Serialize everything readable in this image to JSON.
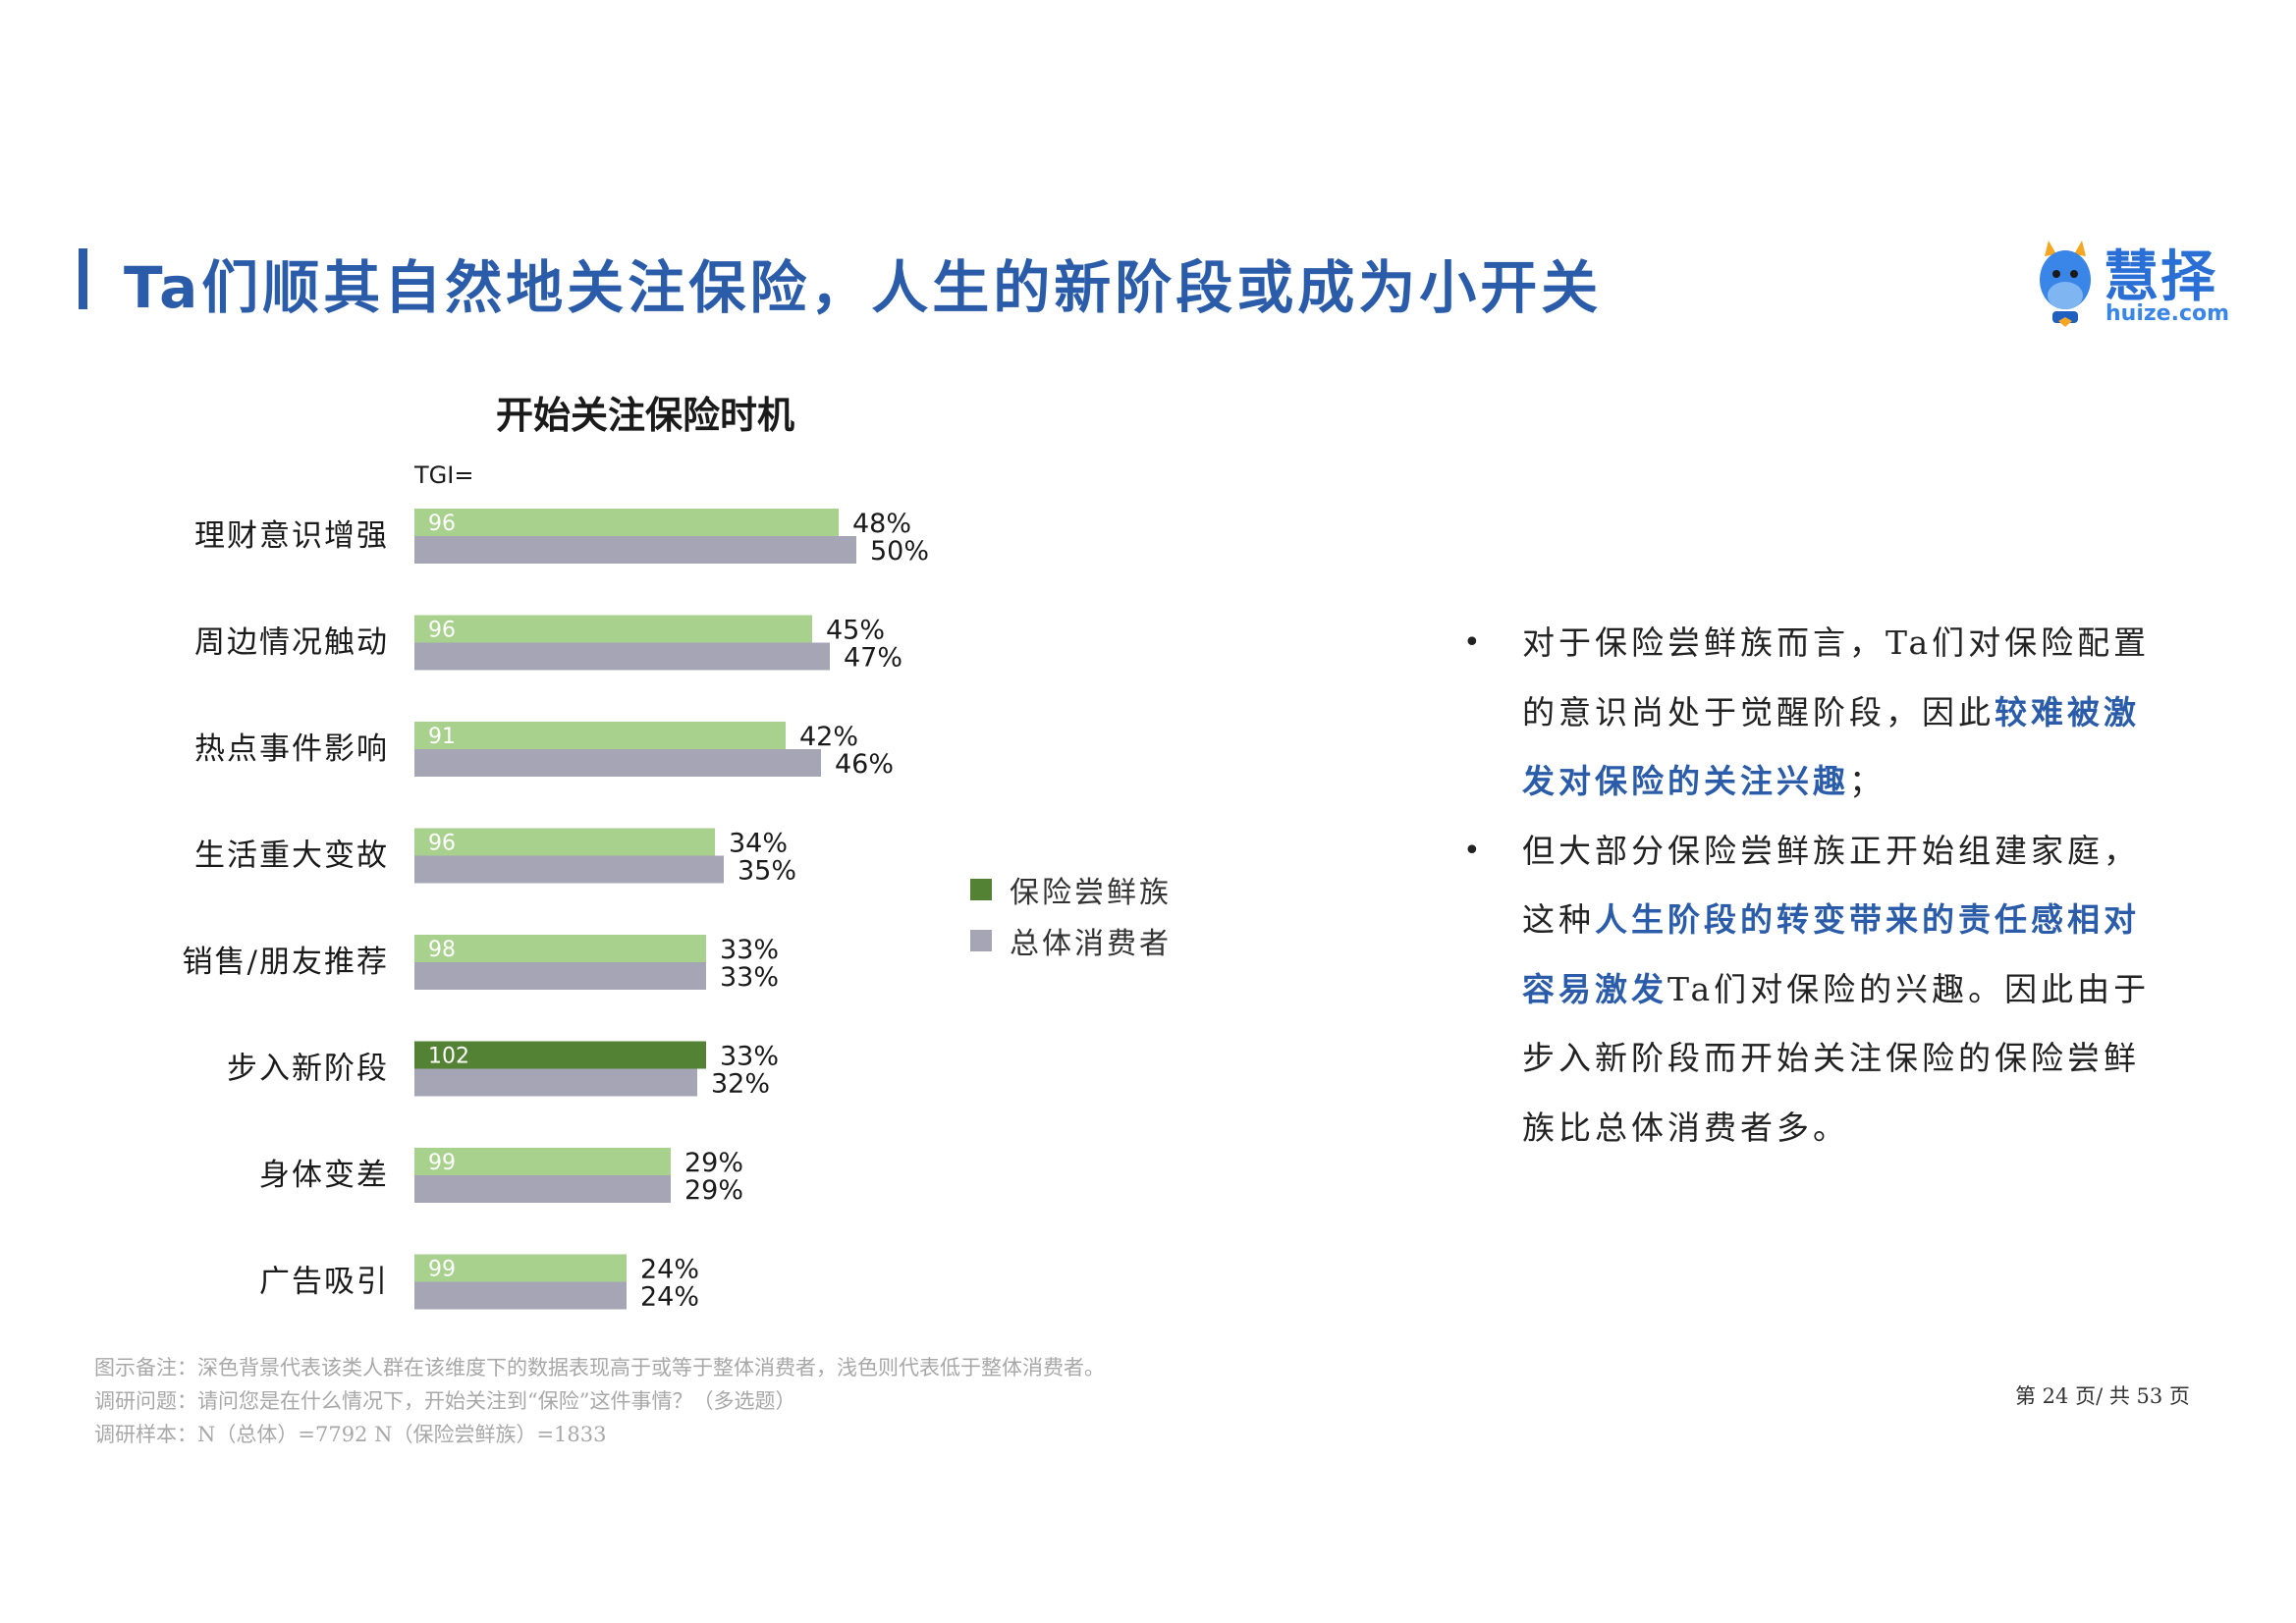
{
  "header": {
    "title": "Ta们顺其自然地关注保险，人生的新阶段或成为小开关",
    "logo_text": "慧择",
    "logo_url": "huize.com"
  },
  "colors": {
    "accent": "#2a5caa",
    "group_light": "#a9d18e",
    "group_dark": "#548235",
    "overall": "#a5a5b5"
  },
  "chart_data": {
    "type": "bar",
    "orientation": "horizontal",
    "title": "开始关注保险时机",
    "tgi_label": "TGI=",
    "categories": [
      "理财意识增强",
      "周边情况触动",
      "热点事件影响",
      "生活重大变故",
      "销售/朋友推荐",
      "步入新阶段",
      "身体变差",
      "广告吸引"
    ],
    "series": [
      {
        "name": "保险尝鲜族",
        "values": [
          48,
          45,
          42,
          34,
          33,
          33,
          29,
          24
        ],
        "labels": [
          "48%",
          "45%",
          "42%",
          "34%",
          "33%",
          "33%",
          "29%",
          "24%"
        ]
      },
      {
        "name": "总体消费者",
        "values": [
          50,
          47,
          46,
          35,
          33,
          32,
          29,
          24
        ],
        "labels": [
          "50%",
          "47%",
          "46%",
          "35%",
          "33%",
          "32%",
          "29%",
          "24%"
        ]
      }
    ],
    "tgi": [
      "96",
      "96",
      "91",
      "96",
      "98",
      "102",
      "99",
      "99"
    ],
    "highlighted": [
      false,
      false,
      false,
      false,
      false,
      true,
      false,
      false
    ],
    "legend": {
      "position": "right",
      "items": [
        "保险尝鲜族",
        "总体消费者"
      ]
    },
    "grid": false
  },
  "bullets": [
    {
      "parts": [
        {
          "text": "对于保险尝鲜族而言，Ta们对保险配置的意识尚处于觉醒阶段，因此",
          "hl": false
        },
        {
          "text": "较难被激发对保险的关注兴趣",
          "hl": true
        },
        {
          "text": "；",
          "hl": false
        }
      ]
    },
    {
      "parts": [
        {
          "text": "但大部分保险尝鲜族正开始组建家庭，这种",
          "hl": false
        },
        {
          "text": "人生阶段的转变带来的责任感相对容易激发",
          "hl": true
        },
        {
          "text": "Ta们对保险的兴趣。因此由于步入新阶段而开始关注保险的保险尝鲜族比总体消费者多。",
          "hl": false
        }
      ]
    }
  ],
  "notes": {
    "line1": "图示备注：深色背景代表该类人群在该维度下的数据表现高于或等于整体消费者，浅色则代表低于整体消费者。",
    "line2": "调研问题：请问您是在什么情况下，开始关注到“保险”这件事情？（多选题）",
    "line3": "调研样本：N（总体）=7792      N（保险尝鲜族）=1833"
  },
  "page": "第 24 页/ 共 53 页"
}
